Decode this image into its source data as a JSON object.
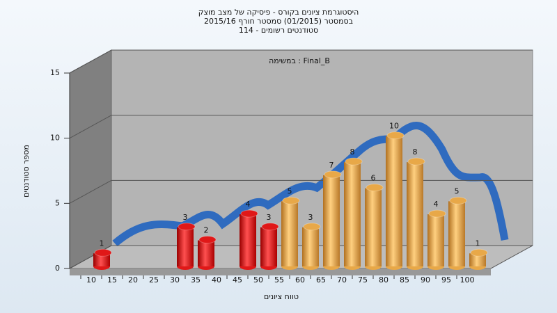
{
  "chart_data": {
    "type": "bar",
    "title": [
      "היסטוגרמת ציונים בקורס - פיסיקה של מצב מוצק",
      "בסמסטר  (01/2015)  סמסטר חורף 2015/16",
      "סטודנטים רשומים - 114"
    ],
    "annotation": "במשימה : Final_B",
    "x_label": "טווח ציונים",
    "y_label": "מספר סטודנטים",
    "categories": [
      "10",
      "15",
      "20",
      "25",
      "30",
      "35",
      "40",
      "45",
      "50",
      "55",
      "60",
      "65",
      "70",
      "75",
      "80",
      "85",
      "90",
      "95",
      "100"
    ],
    "values": [
      1,
      0,
      0,
      0,
      3,
      2,
      0,
      4,
      3,
      5,
      3,
      7,
      8,
      6,
      10,
      8,
      4,
      5,
      1
    ],
    "colors": [
      "#e01818",
      "#e01818",
      "#e01818",
      "#e01818",
      "#e01818",
      "#e01818",
      "#e01818",
      "#e01818",
      "#e01818",
      "#e8a848",
      "#e8a848",
      "#e8a848",
      "#e8a848",
      "#e8a848",
      "#e8a848",
      "#e8a848",
      "#e8a848",
      "#e8a848",
      "#e8a848"
    ],
    "ylim": [
      0,
      15
    ],
    "yticks": [
      0,
      5,
      10,
      15
    ],
    "grid": true
  }
}
